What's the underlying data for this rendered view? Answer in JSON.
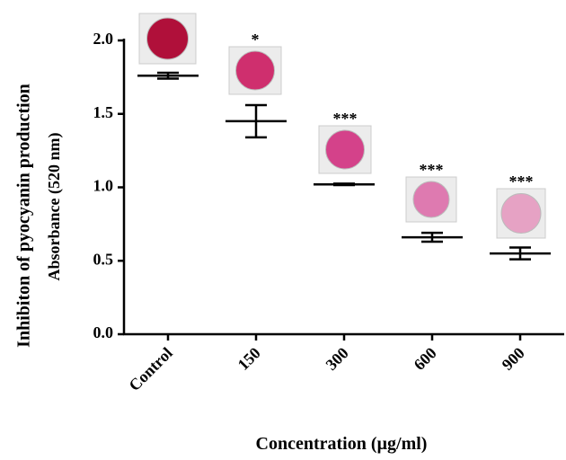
{
  "chart_data": {
    "type": "dot",
    "y_label": "Inhibiton of pyocyanin production",
    "y_sublabel": "Absorbance (520 nm)",
    "x_label": "Concentration (µg/ml)",
    "categories": [
      "Control",
      "150",
      "300",
      "600",
      "900"
    ],
    "values": [
      1.76,
      1.45,
      1.02,
      0.66,
      0.55
    ],
    "errors": [
      0.02,
      0.11,
      0.005,
      0.03,
      0.04
    ],
    "significance": [
      null,
      "*",
      "***",
      "***",
      "***"
    ],
    "ylim": [
      0,
      2.0
    ],
    "yticks": [
      {
        "value": 0,
        "label": "0.0"
      },
      0.5,
      {
        "value": 1.0,
        "label": "1.0"
      },
      1.5,
      {
        "value": 2.0,
        "label": "2.0"
      }
    ],
    "color": "#000000"
  }
}
